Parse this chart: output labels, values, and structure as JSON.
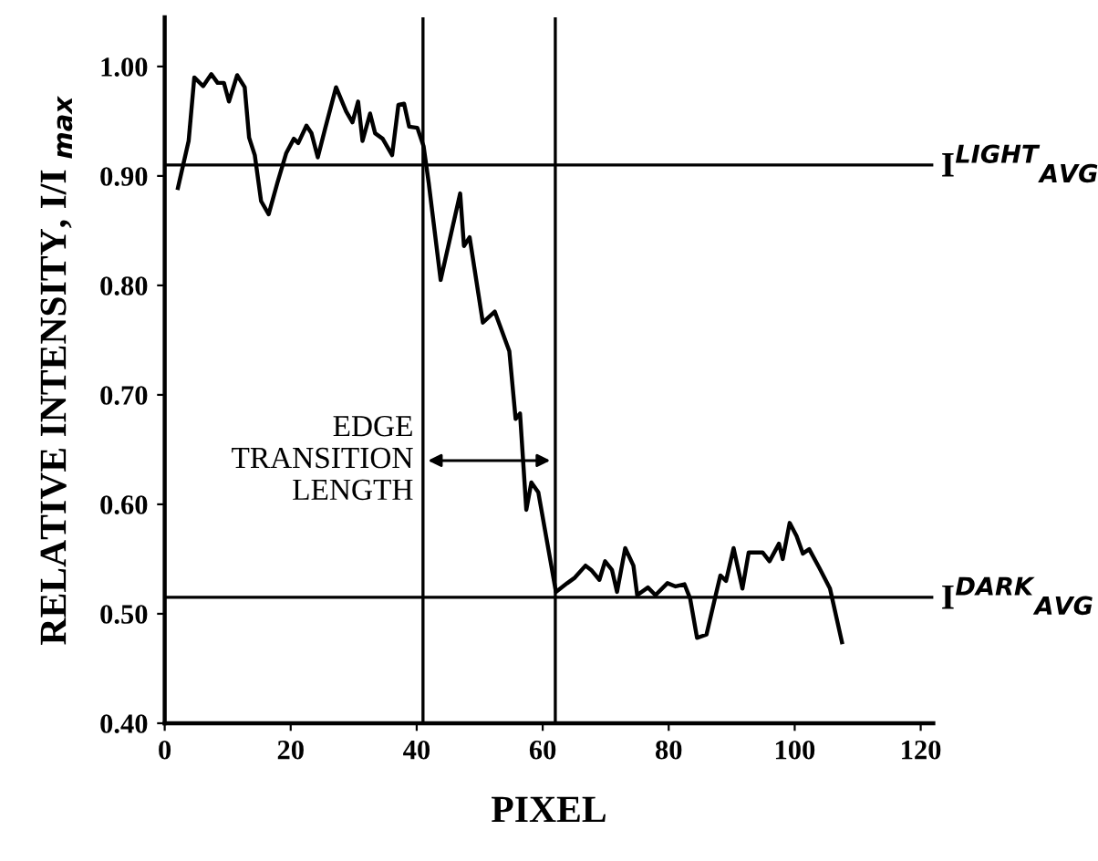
{
  "chart_data": {
    "type": "line",
    "xlabel": "PIXEL",
    "ylabel": "RELATIVE INTENSITY, I/I $_{max}$",
    "series": [
      {
        "color": "#000000",
        "x": [
          2.1,
          3.8,
          4.7,
          6.1,
          7.4,
          8.4,
          9.4,
          10.2,
          11.5,
          12.7,
          13.4,
          14.3,
          15.3,
          16.5,
          17.9,
          19.3,
          20.5,
          21.2,
          22.5,
          23.3,
          24.3,
          25.5,
          27.2,
          28.8,
          29.8,
          30.7,
          31.4,
          32.6,
          33.4,
          34.6,
          36.1,
          37.1,
          38.0,
          38.8,
          40.1,
          41.1,
          41.9,
          43.8,
          46.9,
          47.5,
          48.4,
          50.5,
          52.4,
          54.7,
          55.7,
          56.4,
          57.4,
          58.2,
          59.3,
          62.1,
          63.9,
          65.1,
          66.8,
          67.7,
          69.0,
          69.9,
          71.0,
          71.8,
          73.1,
          74.4,
          75.0,
          76.7,
          77.9,
          79.8,
          81.1,
          82.5,
          83.4,
          84.5,
          86.0,
          87.3,
          88.2,
          89.1,
          90.3,
          91.7,
          92.7,
          94.9,
          96.0,
          97.5,
          98.1,
          99.2,
          100.3,
          101.3,
          102.3,
          103.9,
          105.6,
          107.5
        ],
        "values": [
          0.889,
          0.932,
          0.99,
          0.982,
          0.993,
          0.985,
          0.985,
          0.968,
          0.992,
          0.981,
          0.935,
          0.919,
          0.877,
          0.865,
          0.894,
          0.921,
          0.934,
          0.93,
          0.946,
          0.939,
          0.917,
          0.944,
          0.981,
          0.959,
          0.949,
          0.968,
          0.932,
          0.957,
          0.939,
          0.934,
          0.919,
          0.965,
          0.966,
          0.945,
          0.944,
          0.927,
          0.894,
          0.805,
          0.884,
          0.836,
          0.844,
          0.766,
          0.776,
          0.74,
          0.678,
          0.683,
          0.595,
          0.62,
          0.611,
          0.52,
          0.528,
          0.533,
          0.544,
          0.54,
          0.531,
          0.548,
          0.54,
          0.52,
          0.56,
          0.544,
          0.517,
          0.524,
          0.517,
          0.528,
          0.525,
          0.527,
          0.514,
          0.478,
          0.481,
          0.513,
          0.535,
          0.53,
          0.56,
          0.523,
          0.556,
          0.556,
          0.548,
          0.564,
          0.55,
          0.583,
          0.571,
          0.555,
          0.559,
          0.542,
          0.523,
          0.474
        ]
      }
    ],
    "xlim": [
      0,
      122
    ],
    "xticks": [
      0,
      20,
      40,
      60,
      80,
      100,
      120
    ],
    "ylim": [
      0.4,
      1.045
    ],
    "yticks": [
      {
        "value": 0.4,
        "label": "0.40"
      },
      {
        "value": 0.5,
        "label": "0.50"
      },
      {
        "value": 0.6,
        "label": "0.60"
      },
      {
        "value": 0.7,
        "label": "0.70"
      },
      {
        "value": 0.8,
        "label": "0.80"
      },
      {
        "value": 0.9,
        "label": "0.90"
      },
      {
        "value": 1.0,
        "label": "1.00"
      }
    ],
    "ref_lines": [
      {
        "axis": "y",
        "value": 0.91,
        "label": "I$^{LIGHT}$$_{AVG}$"
      },
      {
        "axis": "y",
        "value": 0.515,
        "label": "I$^{DARK}$$_{AVG}$"
      },
      {
        "axis": "x",
        "value": 41
      },
      {
        "axis": "x",
        "value": 62
      }
    ],
    "annotations": [
      {
        "text": "EDGE\nTRANSITION\nLENGTH",
        "x": 41,
        "y": 0.64
      }
    ],
    "grid": false,
    "legend": false,
    "marker": "none",
    "line_style": "solid"
  }
}
